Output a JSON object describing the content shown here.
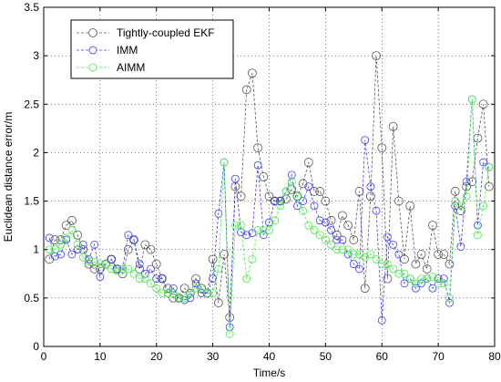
{
  "chart_data": {
    "type": "line",
    "title": "",
    "xlabel": "Time/s",
    "ylabel": "Euclidean distance error/m",
    "xlim": [
      0,
      80
    ],
    "ylim": [
      0,
      3.5
    ],
    "xticks": [
      "0",
      "10",
      "20",
      "30",
      "40",
      "50",
      "60",
      "70",
      "80"
    ],
    "yticks": [
      "0",
      "0.5",
      "1",
      "1.5",
      "2",
      "2.5",
      "3",
      "3.5"
    ],
    "grid": true,
    "legend_position": "top-left",
    "marker": "open-circle",
    "x": [
      1,
      2,
      3,
      4,
      5,
      6,
      7,
      8,
      9,
      10,
      11,
      12,
      13,
      14,
      15,
      16,
      17,
      18,
      19,
      20,
      21,
      22,
      23,
      24,
      25,
      26,
      27,
      28,
      29,
      30,
      31,
      32,
      33,
      34,
      35,
      36,
      37,
      38,
      39,
      40,
      41,
      42,
      43,
      44,
      45,
      46,
      47,
      48,
      49,
      50,
      51,
      52,
      53,
      54,
      55,
      56,
      57,
      58,
      59,
      60,
      61,
      62,
      63,
      64,
      65,
      66,
      67,
      68,
      69,
      70,
      71,
      72,
      73,
      74,
      75,
      76,
      77,
      78,
      79
    ],
    "series": [
      {
        "name": "Tightly-coupled EKF",
        "color": "#555555",
        "values": [
          0.9,
          1.1,
          1.1,
          1.25,
          1.3,
          1.15,
          1.0,
          0.85,
          0.8,
          0.8,
          0.85,
          0.9,
          0.8,
          0.75,
          1.0,
          1.1,
          0.8,
          1.05,
          1.0,
          0.85,
          0.7,
          0.6,
          0.5,
          0.5,
          0.6,
          0.55,
          0.7,
          0.6,
          0.55,
          0.9,
          0.45,
          0.95,
          0.3,
          1.65,
          1.55,
          2.65,
          2.82,
          2.05,
          1.75,
          1.55,
          1.5,
          1.5,
          1.52,
          1.62,
          1.55,
          1.68,
          1.9,
          1.6,
          1.6,
          1.5,
          1.3,
          1.15,
          1.35,
          1.25,
          1.1,
          1.6,
          0.6,
          1.55,
          3.0,
          2.05,
          0.7,
          2.27,
          1.5,
          0.9,
          1.45,
          0.85,
          0.95,
          0.8,
          1.25,
          0.95,
          0.95,
          0.85,
          1.6,
          1.4,
          1.65,
          1.7,
          2.15,
          2.5,
          1.65
        ],
        "markersize": 9
      },
      {
        "name": "IMM",
        "color": "#3a3aff",
        "values": [
          1.12,
          0.93,
          0.95,
          1.1,
          0.95,
          1.0,
          1.05,
          0.9,
          1.05,
          0.72,
          0.85,
          0.9,
          0.8,
          0.8,
          1.15,
          1.1,
          0.85,
          0.75,
          0.8,
          0.7,
          0.7,
          0.55,
          0.6,
          0.5,
          0.48,
          0.5,
          0.65,
          0.55,
          0.55,
          0.7,
          1.37,
          1.9,
          0.2,
          1.73,
          1.18,
          1.15,
          1.17,
          1.87,
          1.15,
          1.28,
          1.5,
          1.5,
          1.6,
          1.77,
          1.45,
          1.5,
          1.65,
          1.45,
          1.3,
          1.28,
          1.2,
          1.1,
          1.1,
          0.95,
          0.85,
          0.8,
          2.13,
          1.65,
          1.4,
          0.27,
          1.13,
          1.05,
          0.95,
          0.65,
          0.7,
          0.6,
          0.65,
          0.7,
          0.6,
          0.7,
          0.7,
          0.45,
          1.45,
          1.03,
          1.7,
          2.55,
          1.25,
          1.9,
          1.85
        ],
        "markersize": 8
      },
      {
        "name": "AIMM",
        "color": "#44ee44",
        "values": [
          1.0,
          1.0,
          1.05,
          1.12,
          1.2,
          1.05,
          0.92,
          0.88,
          0.87,
          0.85,
          0.85,
          0.8,
          0.78,
          0.8,
          0.8,
          0.75,
          0.7,
          0.7,
          0.65,
          0.6,
          0.55,
          0.55,
          0.55,
          0.5,
          0.5,
          0.55,
          0.6,
          0.6,
          0.55,
          0.55,
          0.8,
          1.9,
          0.13,
          1.25,
          1.25,
          0.7,
          0.9,
          1.2,
          1.2,
          1.2,
          1.3,
          1.45,
          1.6,
          1.7,
          1.55,
          1.4,
          1.25,
          1.2,
          1.15,
          1.1,
          1.05,
          1.0,
          1.0,
          1.0,
          0.95,
          0.95,
          0.92,
          0.95,
          0.9,
          0.85,
          0.85,
          0.8,
          0.75,
          0.75,
          0.7,
          0.65,
          0.7,
          0.7,
          0.72,
          0.65,
          0.65,
          0.5,
          1.5,
          1.45,
          1.55,
          2.55,
          1.15,
          1.45,
          1.85
        ],
        "markersize": 8
      }
    ]
  }
}
